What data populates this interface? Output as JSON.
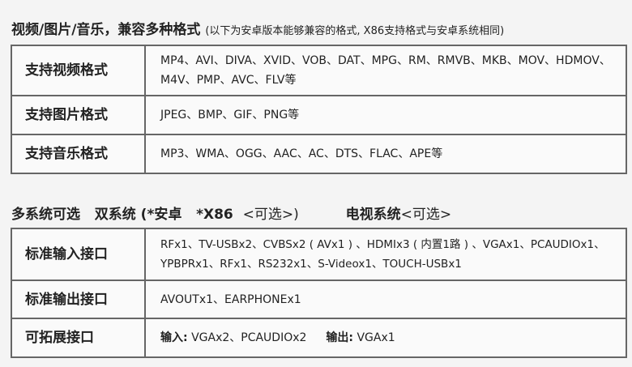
{
  "section1": {
    "title": "视频/图片/音乐，兼容多种格式",
    "note": "(以下为安卓版本能够兼容的格式, X86支持格式与安卓系统相同)",
    "rows": [
      {
        "label": "支持视频格式",
        "value": "MP4、AVI、DIVA、XVID、VOB、DAT、MPG、RM、RMVB、MKB、MOV、HDMOV、M4V、PMP、AVC、FLV等"
      },
      {
        "label": "支持图片格式",
        "value": "JPEG、BMP、GIF、PNG等"
      },
      {
        "label": "支持音乐格式",
        "value": "MP3、WMA、OGG、AAC、AC、DTS、FLAC、APE等"
      }
    ]
  },
  "section2": {
    "title_a": "多系统可选",
    "title_b": "双系统 (*安卓",
    "title_c": "*X86",
    "title_d": "<可选>)",
    "title_e": "电视系统",
    "title_f": "<可选>",
    "rows": [
      {
        "label": "标准输入接口",
        "value": "RFx1、TV-USBx2、CVBSx2 ( AVx1 ) 、HDMIx3 ( 内置1路 ) 、VGAx1、PCAUDIOx1、YPBPRx1、RFx1、RS232x1、S-Videox1、TOUCH-USBx1"
      },
      {
        "label": "标准输出接口",
        "value": "AVOUTx1、EARPHONEx1"
      },
      {
        "label": "可拓展接口",
        "in_label": "输入:",
        "in_value": "VGAx2、PCAUDIOx2",
        "out_label": "输出:",
        "out_value": "VGAx1"
      }
    ]
  }
}
